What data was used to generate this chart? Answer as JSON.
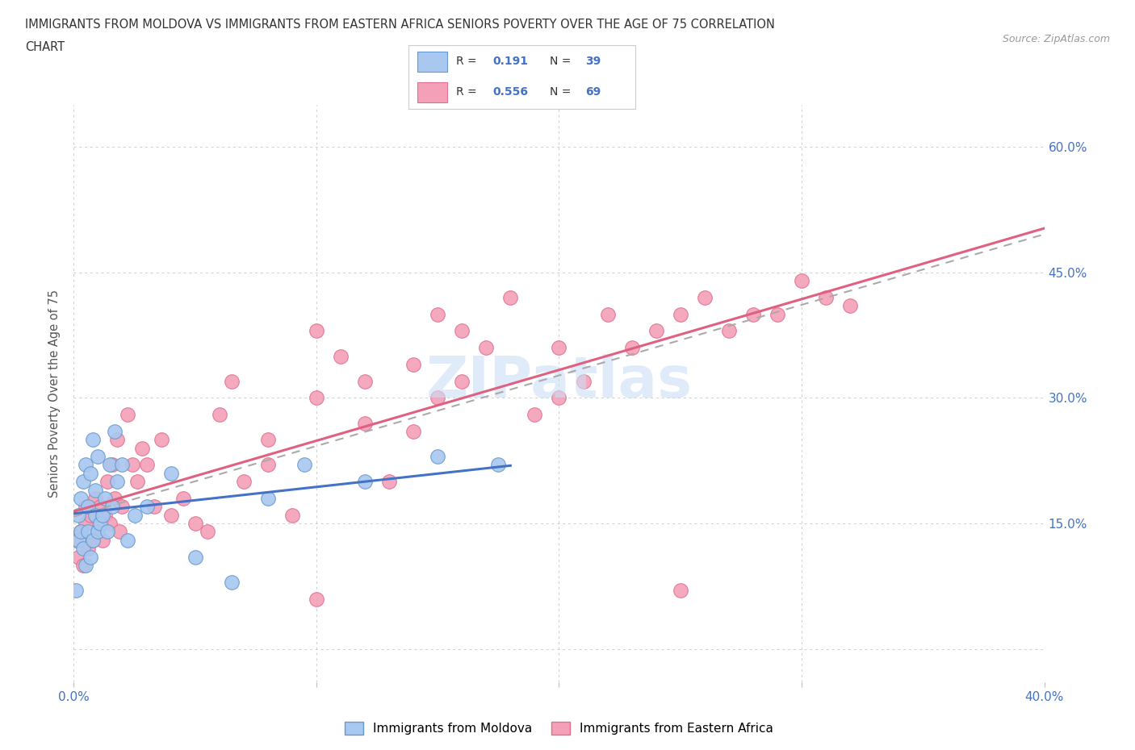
{
  "title_line1": "IMMIGRANTS FROM MOLDOVA VS IMMIGRANTS FROM EASTERN AFRICA SENIORS POVERTY OVER THE AGE OF 75 CORRELATION",
  "title_line2": "CHART",
  "source": "Source: ZipAtlas.com",
  "ylabel": "Seniors Poverty Over the Age of 75",
  "xlim": [
    0.0,
    0.4
  ],
  "ylim": [
    -0.04,
    0.65
  ],
  "xticks": [
    0.0,
    0.1,
    0.2,
    0.3,
    0.4
  ],
  "ytick_positions": [
    0.0,
    0.15,
    0.3,
    0.45,
    0.6
  ],
  "ytick_labels": [
    "",
    "15.0%",
    "30.0%",
    "45.0%",
    "60.0%"
  ],
  "watermark": "ZIPatlas",
  "moldova_color": "#a8c8f0",
  "moldova_edge": "#6699cc",
  "eastern_africa_color": "#f4a0b8",
  "eastern_africa_edge": "#e07090",
  "moldova_line_color": "#4472c4",
  "eastern_africa_line_color": "#e06080",
  "combined_line_color": "#aaaaaa",
  "R_moldova": "0.191",
  "N_moldova": "39",
  "R_eastern_africa": "0.556",
  "N_eastern_africa": "69",
  "moldova_scatter_x": [
    0.001,
    0.002,
    0.002,
    0.003,
    0.003,
    0.004,
    0.004,
    0.005,
    0.005,
    0.006,
    0.006,
    0.007,
    0.007,
    0.008,
    0.008,
    0.009,
    0.009,
    0.01,
    0.01,
    0.011,
    0.012,
    0.013,
    0.014,
    0.015,
    0.016,
    0.017,
    0.018,
    0.02,
    0.022,
    0.025,
    0.03,
    0.04,
    0.05,
    0.065,
    0.08,
    0.095,
    0.12,
    0.15,
    0.175
  ],
  "moldova_scatter_y": [
    0.07,
    0.13,
    0.16,
    0.14,
    0.18,
    0.12,
    0.2,
    0.1,
    0.22,
    0.14,
    0.17,
    0.11,
    0.21,
    0.13,
    0.25,
    0.16,
    0.19,
    0.14,
    0.23,
    0.15,
    0.16,
    0.18,
    0.14,
    0.22,
    0.17,
    0.26,
    0.2,
    0.22,
    0.13,
    0.16,
    0.17,
    0.21,
    0.11,
    0.08,
    0.18,
    0.22,
    0.2,
    0.23,
    0.22
  ],
  "eastern_africa_scatter_x": [
    0.001,
    0.002,
    0.003,
    0.004,
    0.005,
    0.005,
    0.006,
    0.007,
    0.008,
    0.009,
    0.01,
    0.011,
    0.012,
    0.013,
    0.014,
    0.015,
    0.016,
    0.017,
    0.018,
    0.019,
    0.02,
    0.022,
    0.024,
    0.026,
    0.028,
    0.03,
    0.033,
    0.036,
    0.04,
    0.045,
    0.05,
    0.055,
    0.06,
    0.065,
    0.07,
    0.08,
    0.09,
    0.1,
    0.11,
    0.12,
    0.13,
    0.14,
    0.15,
    0.16,
    0.17,
    0.19,
    0.21,
    0.23,
    0.25,
    0.27,
    0.29,
    0.31,
    0.08,
    0.1,
    0.12,
    0.14,
    0.16,
    0.18,
    0.2,
    0.22,
    0.24,
    0.26,
    0.28,
    0.3,
    0.32,
    0.1,
    0.15,
    0.2,
    0.25
  ],
  "eastern_africa_scatter_y": [
    0.13,
    0.11,
    0.14,
    0.1,
    0.15,
    0.17,
    0.12,
    0.16,
    0.13,
    0.18,
    0.14,
    0.17,
    0.13,
    0.16,
    0.2,
    0.15,
    0.22,
    0.18,
    0.25,
    0.14,
    0.17,
    0.28,
    0.22,
    0.2,
    0.24,
    0.22,
    0.17,
    0.25,
    0.16,
    0.18,
    0.15,
    0.14,
    0.28,
    0.32,
    0.2,
    0.25,
    0.16,
    0.06,
    0.35,
    0.32,
    0.2,
    0.26,
    0.3,
    0.32,
    0.36,
    0.28,
    0.32,
    0.36,
    0.4,
    0.38,
    0.4,
    0.42,
    0.22,
    0.3,
    0.27,
    0.34,
    0.38,
    0.42,
    0.36,
    0.4,
    0.38,
    0.42,
    0.4,
    0.44,
    0.41,
    0.38,
    0.4,
    0.3,
    0.07
  ],
  "grid_color": "#cccccc",
  "title_color": "#333333",
  "tick_label_color": "#4472c4",
  "legend_border_color": "#cccccc",
  "bottom_legend_labels": [
    "Immigrants from Moldova",
    "Immigrants from Eastern Africa"
  ]
}
